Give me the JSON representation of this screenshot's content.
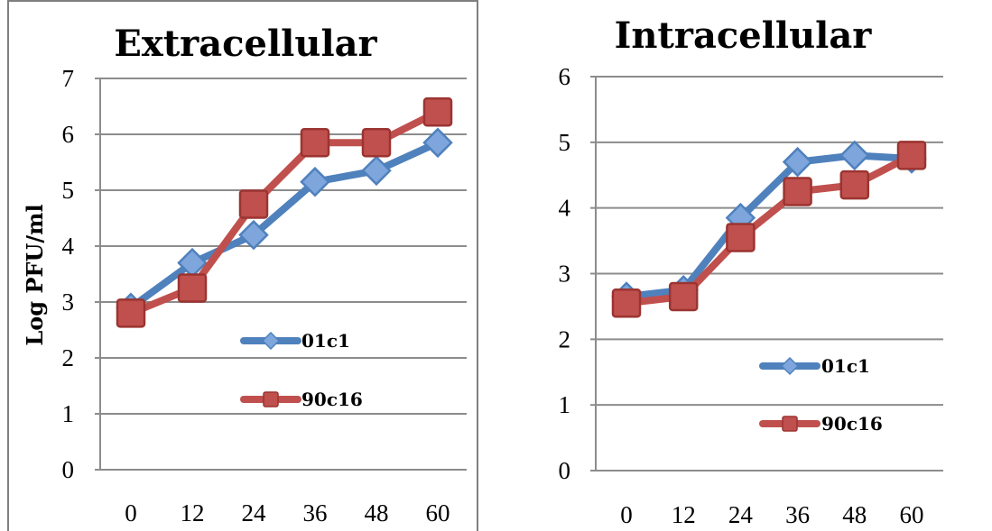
{
  "chart_data": [
    {
      "type": "line",
      "title": "Extracellular",
      "xlabel": "",
      "ylabel": "Log PFU/ml",
      "ylim": [
        0,
        7
      ],
      "yticks": [
        "0",
        "1",
        "2",
        "3",
        "4",
        "5",
        "6",
        "7"
      ],
      "categories": [
        "0",
        "12",
        "24",
        "36",
        "48",
        "60"
      ],
      "grid": true,
      "legend": "center-right",
      "series": [
        {
          "name": "01c1",
          "color": "#4f81bd",
          "marker": "diamond",
          "values": [
            2.9,
            3.7,
            4.2,
            5.15,
            5.35,
            5.85
          ]
        },
        {
          "name": "90c16",
          "color": "#c0504d",
          "marker": "square",
          "values": [
            2.8,
            3.25,
            4.75,
            5.85,
            5.85,
            6.4
          ]
        }
      ]
    },
    {
      "type": "line",
      "title": "Intracellular",
      "xlabel": "",
      "ylabel": "",
      "ylim": [
        0,
        6
      ],
      "yticks": [
        "0",
        "1",
        "2",
        "3",
        "4",
        "5",
        "6"
      ],
      "categories": [
        "0",
        "12",
        "24",
        "36",
        "48",
        "60"
      ],
      "grid": true,
      "legend": "center-right",
      "series": [
        {
          "name": "01c1",
          "color": "#4f81bd",
          "marker": "diamond",
          "values": [
            2.65,
            2.75,
            3.85,
            4.7,
            4.8,
            4.75
          ]
        },
        {
          "name": "90c16",
          "color": "#c0504d",
          "marker": "square",
          "values": [
            2.55,
            2.65,
            3.55,
            4.25,
            4.35,
            4.8
          ]
        }
      ]
    }
  ]
}
